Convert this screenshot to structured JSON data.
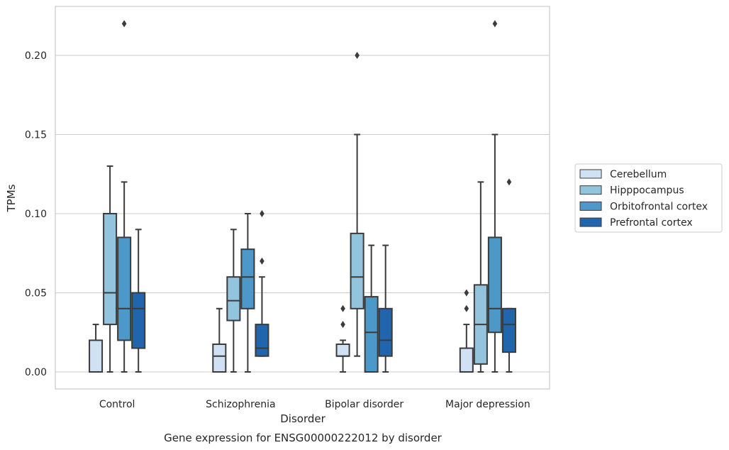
{
  "chart_data": {
    "type": "box",
    "title": "",
    "caption": "Gene expression for ENSG00000222012 by disorder",
    "xlabel": "Disorder",
    "ylabel": "TPMs",
    "ylim": [
      -0.011,
      0.232
    ],
    "yticks": [
      0.0,
      0.05,
      0.1,
      0.15,
      0.2
    ],
    "ytick_labels": [
      "0.00",
      "0.05",
      "0.10",
      "0.15",
      "0.20"
    ],
    "grid": "horizontal",
    "legend_position": "right",
    "categories": [
      "Control",
      "Schizophrenia",
      "Bipolar disorder",
      "Major depression"
    ],
    "series": [
      {
        "name": "Cerebellum",
        "color": "#cfe1f2",
        "boxes": [
          {
            "whisker_low": 0.0,
            "q1": 0.0,
            "median": 0.0,
            "q3": 0.02,
            "whisker_high": 0.03,
            "outliers": []
          },
          {
            "whisker_low": 0.0,
            "q1": 0.0,
            "median": 0.01,
            "q3": 0.0175,
            "whisker_high": 0.04,
            "outliers": []
          },
          {
            "whisker_low": 0.0,
            "q1": 0.01,
            "median": 0.01,
            "q3": 0.0175,
            "whisker_high": 0.02,
            "outliers": [
              0.03,
              0.04
            ]
          },
          {
            "whisker_low": 0.0,
            "q1": 0.0,
            "median": 0.0,
            "q3": 0.015,
            "whisker_high": 0.03,
            "outliers": [
              0.04,
              0.05
            ]
          }
        ]
      },
      {
        "name": "Hipppocampus",
        "color": "#93c4de",
        "boxes": [
          {
            "whisker_low": 0.0,
            "q1": 0.03,
            "median": 0.05,
            "q3": 0.1,
            "whisker_high": 0.13,
            "outliers": []
          },
          {
            "whisker_low": 0.0,
            "q1": 0.0325,
            "median": 0.045,
            "q3": 0.06,
            "whisker_high": 0.09,
            "outliers": []
          },
          {
            "whisker_low": 0.01,
            "q1": 0.04,
            "median": 0.06,
            "q3": 0.0875,
            "whisker_high": 0.15,
            "outliers": [
              0.2
            ]
          },
          {
            "whisker_low": 0.0,
            "q1": 0.005,
            "median": 0.03,
            "q3": 0.055,
            "whisker_high": 0.12,
            "outliers": []
          }
        ]
      },
      {
        "name": "Orbitofrontal cortex",
        "color": "#4b98c9",
        "boxes": [
          {
            "whisker_low": 0.0,
            "q1": 0.02,
            "median": 0.04,
            "q3": 0.085,
            "whisker_high": 0.12,
            "outliers": [
              0.22
            ]
          },
          {
            "whisker_low": 0.0,
            "q1": 0.04,
            "median": 0.06,
            "q3": 0.0775,
            "whisker_high": 0.1,
            "outliers": []
          },
          {
            "whisker_low": 0.0,
            "q1": 0.0,
            "median": 0.025,
            "q3": 0.0475,
            "whisker_high": 0.08,
            "outliers": []
          },
          {
            "whisker_low": 0.0,
            "q1": 0.025,
            "median": 0.04,
            "q3": 0.085,
            "whisker_high": 0.15,
            "outliers": [
              0.22
            ]
          }
        ]
      },
      {
        "name": "Prefrontal cortex",
        "color": "#2166ac",
        "boxes": [
          {
            "whisker_low": 0.0,
            "q1": 0.015,
            "median": 0.04,
            "q3": 0.05,
            "whisker_high": 0.09,
            "outliers": []
          },
          {
            "whisker_low": 0.01,
            "q1": 0.01,
            "median": 0.015,
            "q3": 0.03,
            "whisker_high": 0.06,
            "outliers": [
              0.07,
              0.1
            ]
          },
          {
            "whisker_low": 0.0,
            "q1": 0.01,
            "median": 0.02,
            "q3": 0.04,
            "whisker_high": 0.08,
            "outliers": []
          },
          {
            "whisker_low": 0.0,
            "q1": 0.0125,
            "median": 0.03,
            "q3": 0.04,
            "whisker_high": 0.04,
            "outliers": [
              0.12
            ]
          }
        ]
      }
    ]
  }
}
